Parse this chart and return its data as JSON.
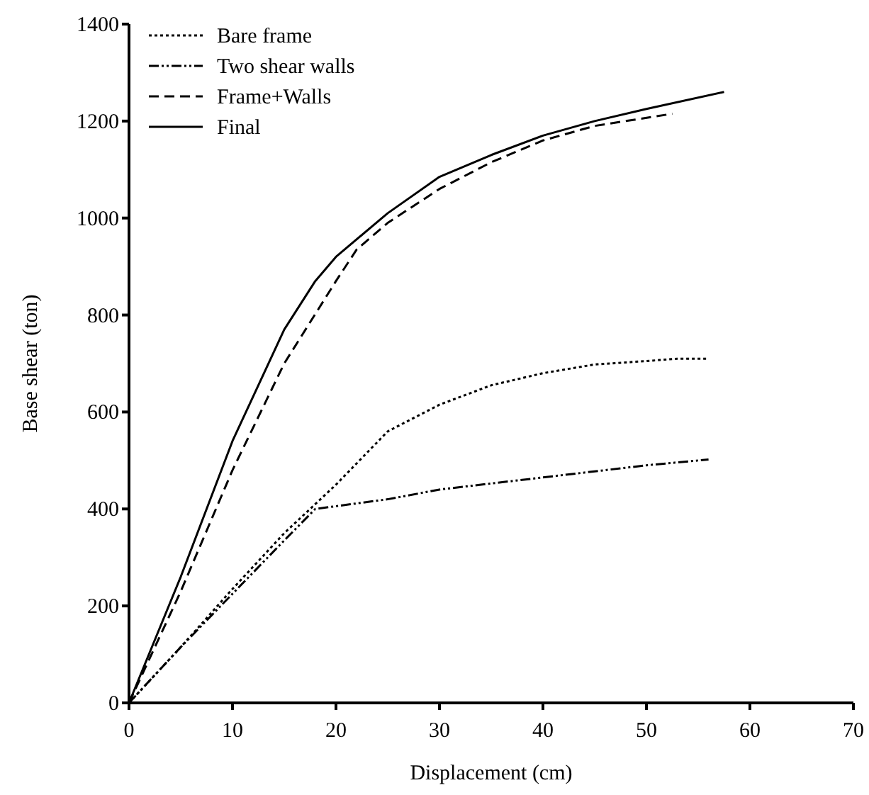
{
  "chart_data": {
    "type": "line",
    "xlabel": "Displacement (cm)",
    "ylabel": "Base shear (ton)",
    "xlim": [
      0,
      70
    ],
    "ylim": [
      0,
      1400
    ],
    "xticks": [
      0,
      10,
      20,
      30,
      40,
      50,
      60,
      70
    ],
    "yticks": [
      0,
      200,
      400,
      600,
      800,
      1000,
      1200,
      1400
    ],
    "grid": false,
    "legend": "top left",
    "series": [
      {
        "name": "Bare frame",
        "color": "#000000",
        "line_style": "dotted",
        "x": [
          0,
          5,
          10,
          15,
          18,
          20,
          25,
          30,
          35,
          40,
          45,
          50,
          53,
          56
        ],
        "values": [
          0,
          115,
          235,
          350,
          410,
          450,
          560,
          615,
          655,
          680,
          698,
          705,
          710,
          710
        ]
      },
      {
        "name": "Two shear walls",
        "color": "#000000",
        "line_style": "dashdotdot",
        "x": [
          0,
          5,
          10,
          15,
          18,
          25,
          30,
          40,
          50,
          56
        ],
        "values": [
          0,
          115,
          225,
          335,
          400,
          420,
          440,
          465,
          490,
          502
        ]
      },
      {
        "name": "Frame+Walls",
        "color": "#000000",
        "line_style": "dashed",
        "x": [
          0,
          5,
          10,
          15,
          20,
          22,
          25,
          30,
          35,
          40,
          45,
          52.5
        ],
        "values": [
          0,
          230,
          480,
          700,
          870,
          935,
          990,
          1060,
          1115,
          1160,
          1190,
          1215
        ]
      },
      {
        "name": "Final",
        "color": "#000000",
        "line_style": "solid",
        "x": [
          0,
          5,
          10,
          15,
          18,
          20,
          25,
          30,
          35,
          40,
          45,
          50,
          57.5
        ],
        "values": [
          0,
          260,
          540,
          770,
          870,
          920,
          1010,
          1085,
          1130,
          1170,
          1200,
          1225,
          1260
        ]
      }
    ]
  }
}
